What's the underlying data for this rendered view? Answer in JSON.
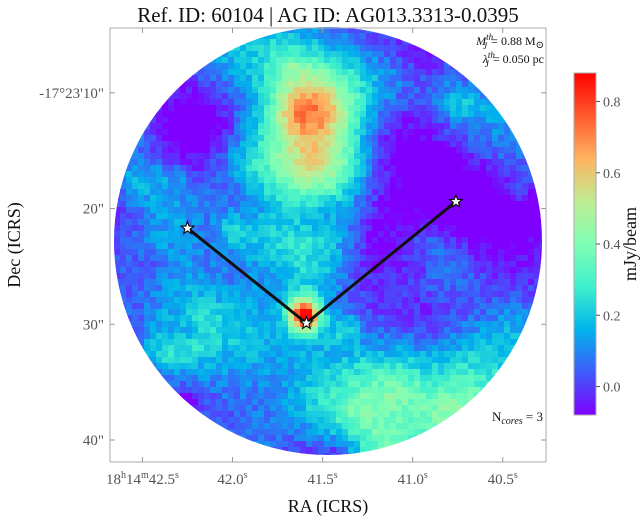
{
  "chart_data": {
    "type": "heatmap",
    "title": "Ref. ID: 60104 | AG ID: AG013.3313-0.0395",
    "xlabel": "RA (ICRS)",
    "ylabel": "Dec (ICRS)",
    "colorbar_label": "mJy/beam",
    "x_axis": {
      "range": [
        42.68,
        40.26
      ],
      "direction": "decreasing to the right",
      "ticks": [
        {
          "value": 42.5,
          "label": "18h14m42.5s",
          "main": "18",
          "sup1": "h",
          "mid": "14",
          "sup2": "m",
          "tail": "42.5",
          "sup3": "s"
        },
        {
          "value": 42.0,
          "label": "42.0s",
          "main": "42.0",
          "sup": "s"
        },
        {
          "value": 41.5,
          "label": "41.5s",
          "main": "41.5",
          "sup": "s"
        },
        {
          "value": 41.0,
          "label": "41.0s",
          "main": "41.0",
          "sup": "s"
        },
        {
          "value": 40.5,
          "label": "40.5s",
          "main": "40.5",
          "sup": "s"
        }
      ]
    },
    "y_axis": {
      "range": [
        4.4,
        41.9
      ],
      "direction": "decreasing upward (arcsec offset below -17°23')",
      "ticks": [
        {
          "value": 10,
          "label": "-17°23'10\""
        },
        {
          "value": 20,
          "label": "20\""
        },
        {
          "value": 30,
          "label": "30\""
        },
        {
          "value": 40,
          "label": "40\""
        }
      ]
    },
    "colorbar": {
      "colormap": "rainbow",
      "range": [
        -0.08,
        0.88
      ],
      "ticks": [
        {
          "value": 0.0,
          "label": "0.0"
        },
        {
          "value": 0.2,
          "label": "0.2"
        },
        {
          "value": 0.4,
          "label": "0.4"
        },
        {
          "value": 0.6,
          "label": "0.6"
        },
        {
          "value": 0.8,
          "label": "0.8"
        }
      ],
      "colors": [
        "#7f00ff",
        "#3f5bfb",
        "#00b4eb",
        "#3ff0cc",
        "#7ffeb4",
        "#bfed93",
        "#ffb360",
        "#ff5a2e",
        "#ff0000"
      ]
    },
    "field_of_view": "circular primary beam, no emission outside",
    "emission": {
      "background_level": 0.0,
      "noise_level": 0.05,
      "structures": [
        {
          "name": "filament",
          "ra": 41.52,
          "dec": 20.2,
          "peak": 0.4,
          "extent": [
            0.18,
            7.0
          ]
        },
        {
          "name": "peak",
          "ra": 41.6,
          "dec": 29.2,
          "peak": 0.86
        }
      ]
    },
    "cores": [
      {
        "ra": 42.25,
        "dec": 21.7
      },
      {
        "ra": 41.59,
        "dec": 29.9
      },
      {
        "ra": 40.76,
        "dec": 19.4
      }
    ],
    "connections": [
      [
        0,
        1
      ],
      [
        1,
        2
      ]
    ],
    "annotations": {
      "mass_label": "M",
      "mass_sub": "J",
      "mass_sup": "th",
      "mass_value": "= 0.88 M",
      "mass_unit_symbol": "⊙",
      "length_label": "λ",
      "length_sub": "J",
      "length_sup": "th",
      "length_value": "= 0.050 pc",
      "ncores_label": "N",
      "ncores_sub": "cores",
      "ncores_value": " = 3"
    },
    "grid": false,
    "legend": "none"
  },
  "colors": {
    "core_line": "#111111",
    "core_marker_fill": "#ffffff",
    "core_marker_stroke": "#111111",
    "frame": "#999999",
    "tick_text": "#555555"
  }
}
